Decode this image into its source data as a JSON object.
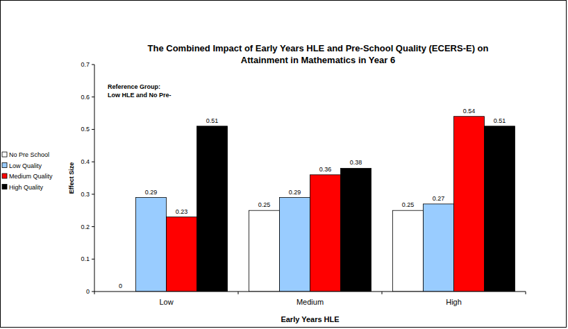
{
  "chart_data": {
    "type": "bar",
    "title": "The Combined Impact of Early Years HLE and Pre-School Quality (ECERS-E) on Attainment in Mathematics in Year 6",
    "annotations": [
      "Reference Group:",
      "Low HLE and No Pre-"
    ],
    "x_label": "Early Years HLE",
    "y_label": "Effect Size",
    "categories": [
      "Low",
      "Medium",
      "High"
    ],
    "series": [
      {
        "name": "No Pre School",
        "color": "#FFFFFF",
        "values": [
          0,
          0.25,
          0.25
        ]
      },
      {
        "name": "Low Quality",
        "color": "#99CCFF",
        "values": [
          0.29,
          0.29,
          0.27
        ]
      },
      {
        "name": "Medium Quality",
        "color": "#FF0000",
        "values": [
          0.23,
          0.36,
          0.54
        ]
      },
      {
        "name": "High Quality",
        "color": "#000000",
        "values": [
          0.51,
          0.38,
          0.51
        ]
      }
    ],
    "ylim": [
      0,
      0.7
    ],
    "yticks": [
      0,
      0.1,
      0.2,
      0.3,
      0.4,
      0.5,
      0.6,
      0.7
    ],
    "grid": false,
    "legend": "left",
    "data_labels": true
  }
}
